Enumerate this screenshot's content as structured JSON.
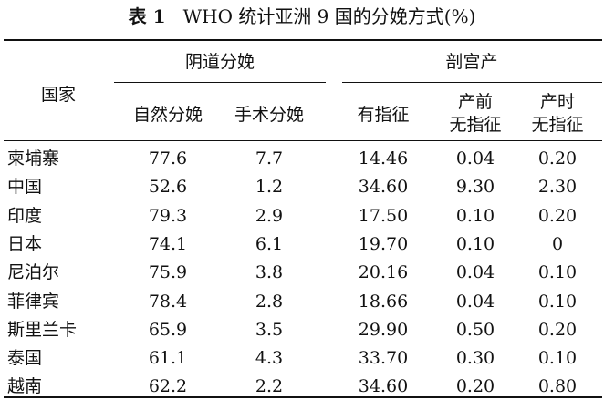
{
  "title": {
    "label": "表 1",
    "text": "WHO 统计亚洲 9 国的分娩方式(%)"
  },
  "table": {
    "header": {
      "row_header": "国家",
      "groups": [
        {
          "label": "阴道分娩",
          "columns": [
            [
              "自然分娩"
            ],
            [
              "手术分娩"
            ]
          ]
        },
        {
          "label": "剖宫产",
          "columns": [
            [
              "有指征"
            ],
            [
              "产前",
              "无指征"
            ],
            [
              "产时",
              "无指征"
            ]
          ]
        }
      ]
    },
    "rows": [
      [
        "柬埔寨",
        "77.6",
        "7.7",
        "14.46",
        "0.04",
        "0.20"
      ],
      [
        "中国",
        "52.6",
        "1.2",
        "34.60",
        "9.30",
        "2.30"
      ],
      [
        "印度",
        "79.3",
        "2.9",
        "17.50",
        "0.10",
        "0.20"
      ],
      [
        "日本",
        "74.1",
        "6.1",
        "19.70",
        "0.10",
        "0"
      ],
      [
        "尼泊尔",
        "75.9",
        "3.8",
        "20.16",
        "0.04",
        "0.10"
      ],
      [
        "菲律宾",
        "78.4",
        "2.8",
        "18.66",
        "0.04",
        "0.10"
      ],
      [
        "斯里兰卡",
        "65.9",
        "3.5",
        "29.90",
        "0.50",
        "0.20"
      ],
      [
        "泰国",
        "61.1",
        "4.3",
        "33.70",
        "0.30",
        "0.10"
      ],
      [
        "越南",
        "62.2",
        "2.2",
        "34.60",
        "0.20",
        "0.80"
      ]
    ]
  }
}
